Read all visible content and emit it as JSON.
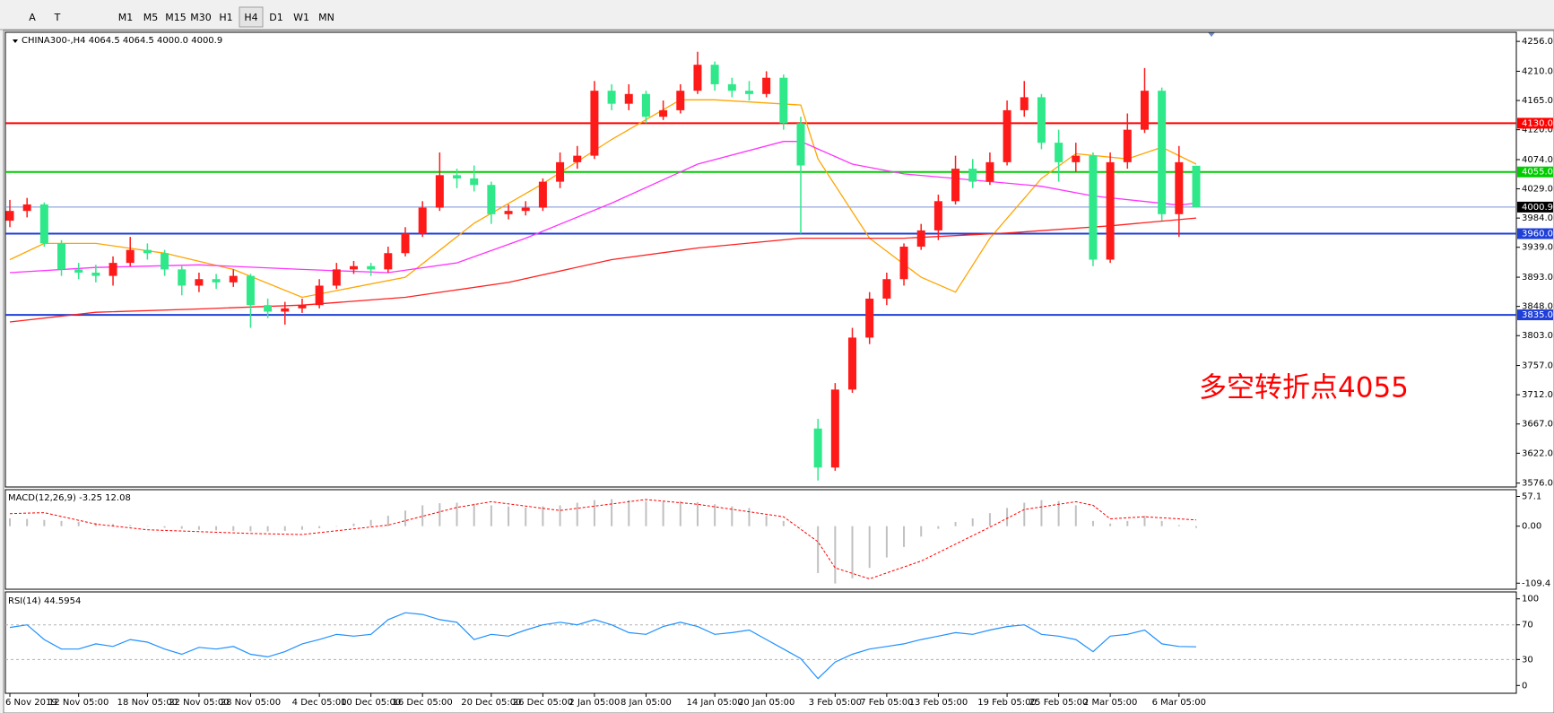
{
  "toolbar": {
    "tools": [
      "A",
      "T"
    ],
    "timeframes": [
      "M1",
      "M5",
      "M15",
      "M30",
      "H1",
      "H4",
      "D1",
      "W1",
      "MN"
    ],
    "active": "H4"
  },
  "chart_data": {
    "type": "candlestick",
    "title": "CHINA300-,H4  4064.5 4064.5 4000.0 4000.9",
    "up_color": "#ff1a1a",
    "down_color": "#2ee88a",
    "categories": [
      "6 Nov 2019",
      null,
      null,
      null,
      "12 Nov 05:00",
      null,
      null,
      null,
      "18 Nov 05:00",
      null,
      null,
      "22 Nov 05:00",
      null,
      null,
      "28 Nov 05:00",
      null,
      null,
      null,
      "4 Dec 05:00",
      null,
      null,
      "10 Dec 05:00",
      null,
      null,
      "16 Dec 05:00",
      null,
      null,
      null,
      "20 Dec 05:00",
      null,
      null,
      "26 Dec 05:00",
      null,
      null,
      "2 Jan 05:00",
      null,
      null,
      "8 Jan 05:00",
      null,
      null,
      null,
      "14 Jan 05:00",
      null,
      null,
      "20 Jan 05:00",
      null,
      null,
      null,
      "3 Feb 05:00",
      null,
      null,
      "7 Feb 05:00",
      null,
      null,
      "13 Feb 05:00",
      null,
      null,
      null,
      "19 Feb 05:00",
      null,
      null,
      "25 Feb 05:00",
      null,
      null,
      "2 Mar 05:00",
      null,
      null,
      null,
      "6 Mar 05:00",
      null
    ],
    "ohlc": [
      [
        3980,
        4012,
        3970,
        3995
      ],
      [
        3995,
        4015,
        3985,
        4005
      ],
      [
        4005,
        4008,
        3940,
        3945
      ],
      [
        3945,
        3950,
        3895,
        3905
      ],
      [
        3905,
        3915,
        3890,
        3900
      ],
      [
        3900,
        3912,
        3885,
        3895
      ],
      [
        3895,
        3925,
        3880,
        3915
      ],
      [
        3915,
        3955,
        3910,
        3935
      ],
      [
        3935,
        3945,
        3920,
        3930
      ],
      [
        3930,
        3935,
        3895,
        3905
      ],
      [
        3905,
        3910,
        3865,
        3880
      ],
      [
        3880,
        3900,
        3870,
        3890
      ],
      [
        3890,
        3898,
        3875,
        3885
      ],
      [
        3885,
        3905,
        3878,
        3895
      ],
      [
        3895,
        3898,
        3815,
        3850
      ],
      [
        3850,
        3860,
        3830,
        3840
      ],
      [
        3840,
        3855,
        3820,
        3845
      ],
      [
        3845,
        3860,
        3838,
        3850
      ],
      [
        3850,
        3890,
        3845,
        3880
      ],
      [
        3880,
        3915,
        3875,
        3905
      ],
      [
        3905,
        3918,
        3898,
        3910
      ],
      [
        3910,
        3915,
        3895,
        3905
      ],
      [
        3905,
        3940,
        3900,
        3930
      ],
      [
        3930,
        3970,
        3925,
        3960
      ],
      [
        3960,
        4010,
        3955,
        4000
      ],
      [
        4000,
        4085,
        3995,
        4050
      ],
      [
        4050,
        4060,
        4030,
        4045
      ],
      [
        4045,
        4065,
        4025,
        4035
      ],
      [
        4035,
        4040,
        3975,
        3990
      ],
      [
        3990,
        4005,
        3982,
        3995
      ],
      [
        3995,
        4010,
        3988,
        4000
      ],
      [
        4000,
        4045,
        3995,
        4040
      ],
      [
        4040,
        4085,
        4030,
        4070
      ],
      [
        4070,
        4095,
        4060,
        4080
      ],
      [
        4080,
        4195,
        4075,
        4180
      ],
      [
        4180,
        4190,
        4150,
        4160
      ],
      [
        4160,
        4190,
        4150,
        4175
      ],
      [
        4175,
        4180,
        4130,
        4140
      ],
      [
        4140,
        4165,
        4135,
        4150
      ],
      [
        4150,
        4190,
        4145,
        4180
      ],
      [
        4180,
        4240,
        4175,
        4220
      ],
      [
        4220,
        4225,
        4180,
        4190
      ],
      [
        4190,
        4200,
        4170,
        4180
      ],
      [
        4180,
        4195,
        4165,
        4175
      ],
      [
        4175,
        4210,
        4170,
        4200
      ],
      [
        4200,
        4205,
        4120,
        4130
      ],
      [
        4130,
        4140,
        3960,
        4065
      ],
      [
        3660,
        3675,
        3580,
        3600
      ],
      [
        3600,
        3730,
        3595,
        3720
      ],
      [
        3720,
        3815,
        3715,
        3800
      ],
      [
        3800,
        3870,
        3790,
        3860
      ],
      [
        3860,
        3900,
        3850,
        3890
      ],
      [
        3890,
        3945,
        3880,
        3940
      ],
      [
        3940,
        3975,
        3935,
        3965
      ],
      [
        3965,
        4020,
        3950,
        4010
      ],
      [
        4010,
        4080,
        4005,
        4060
      ],
      [
        4060,
        4075,
        4030,
        4040
      ],
      [
        4040,
        4085,
        4035,
        4070
      ],
      [
        4070,
        4165,
        4065,
        4150
      ],
      [
        4150,
        4195,
        4140,
        4170
      ],
      [
        4170,
        4175,
        4090,
        4100
      ],
      [
        4100,
        4120,
        4040,
        4070
      ],
      [
        4070,
        4100,
        4055,
        4080
      ],
      [
        4080,
        4085,
        3910,
        3920
      ],
      [
        3920,
        4085,
        3915,
        4070
      ],
      [
        4070,
        4145,
        4060,
        4120
      ],
      [
        4120,
        4215,
        4115,
        4180
      ],
      [
        4180,
        4185,
        3980,
        3990
      ],
      [
        3990,
        4095,
        3955,
        4070
      ],
      [
        4064.5,
        4064.5,
        4000.0,
        4000.9
      ]
    ],
    "ylim": [
      3570,
      4270
    ],
    "yticks": [
      {
        "value": 4256,
        "label": "4256.0"
      },
      {
        "value": 4210,
        "label": "4210.0"
      },
      {
        "value": 4165,
        "label": "4165.0"
      },
      {
        "value": 4120,
        "label": "4120.0"
      },
      {
        "value": 4074,
        "label": "4074.0"
      },
      {
        "value": 4029,
        "label": "4029.0"
      },
      {
        "value": 3984,
        "label": "3984.0"
      },
      {
        "value": 3939,
        "label": "3939.0"
      },
      {
        "value": 3893,
        "label": "3893.0"
      },
      {
        "value": 3848,
        "label": "3848.0"
      },
      {
        "value": 3803,
        "label": "3803.0"
      },
      {
        "value": 3757,
        "label": "3757.0"
      },
      {
        "value": 3712,
        "label": "3712.0"
      },
      {
        "value": 3667,
        "label": "3667.0"
      },
      {
        "value": 3622,
        "label": "3622.0"
      },
      {
        "value": 3576,
        "label": "3576.0"
      }
    ],
    "moving_averages": [
      {
        "color": "#ffa500",
        "x": [
          0,
          2,
          5,
          9,
          13,
          17,
          23,
          27,
          31,
          35,
          39,
          41,
          46,
          47,
          50,
          53,
          55,
          57,
          60,
          62,
          65,
          67,
          69
        ],
        "values": [
          3920,
          3945,
          3945,
          3930,
          3905,
          3862,
          3893,
          3976,
          4037,
          4105,
          4166,
          4166,
          4158,
          4075,
          3953,
          3893,
          3870,
          3953,
          4045,
          4083,
          4075,
          4093,
          4067
        ]
      },
      {
        "color": "#ff33ff",
        "x": [
          0,
          5,
          11,
          17,
          22,
          26,
          30,
          35,
          40,
          45,
          46,
          49,
          52,
          55,
          60,
          63,
          68,
          69
        ],
        "values": [
          3900,
          3908,
          3912,
          3905,
          3900,
          3915,
          3953,
          4007,
          4067,
          4102,
          4102,
          4067,
          4052,
          4045,
          4033,
          4018,
          4004,
          4007
        ]
      },
      {
        "color": "#ff2020",
        "x": [
          0,
          5,
          11,
          17,
          23,
          29,
          35,
          40,
          46,
          52,
          58,
          64,
          69
        ],
        "values": [
          3824,
          3839,
          3844,
          3850,
          3862,
          3885,
          3920,
          3938,
          3953,
          3953,
          3961,
          3972,
          3984
        ]
      }
    ],
    "levels": [
      {
        "value": 4130,
        "label": "4130.0",
        "color": "#ff0000",
        "label_color": "#ff0000",
        "width": 2
      },
      {
        "value": 4055,
        "label": "4055.0",
        "color": "#00cc00",
        "label_color": "#00cc00",
        "width": 2
      },
      {
        "value": 4000.9,
        "label": "4000.9",
        "color": "#7b8fd6",
        "label_color": "#000000",
        "width": 1
      },
      {
        "value": 3960,
        "label": "3960.0",
        "color": "#1f3fd8",
        "label_color": "#1f3fd8",
        "width": 2
      },
      {
        "value": 3835,
        "label": "3835.0",
        "color": "#1f3fd8",
        "label_color": "#1f3fd8",
        "width": 2
      }
    ],
    "annotation": {
      "text": "多空转折点4055",
      "color": "#ff0000"
    },
    "macd": {
      "title": "MACD(12,26,9) -3.25 12.08",
      "ylim": [
        -121,
        70
      ],
      "yticks": [
        57.1,
        {
          "value": 0,
          "label": "0.00"
        },
        -109.4
      ],
      "color": "#c0c0c0",
      "histogram": [
        15,
        14,
        12,
        10,
        8,
        6,
        4,
        2,
        0,
        -3,
        -5,
        -7,
        -8,
        -9,
        -10,
        -10,
        -9,
        -7,
        -4,
        0,
        5,
        12,
        20,
        30,
        40,
        44,
        45,
        43,
        40,
        38,
        36,
        38,
        40,
        45,
        50,
        52,
        50,
        48,
        47,
        48,
        46,
        42,
        38,
        35,
        20,
        10,
        0,
        -90,
        -110,
        -100,
        -80,
        -60,
        -40,
        -20,
        -5,
        8,
        15,
        25,
        35,
        45,
        50,
        48,
        40,
        10,
        5,
        10,
        20,
        10,
        2,
        -3.25
      ],
      "signal": {
        "color": "#ff0000",
        "x": [
          0,
          2,
          5,
          8,
          14,
          17,
          22,
          26,
          28,
          32,
          37,
          40,
          45,
          47,
          48,
          50,
          53,
          57,
          59,
          62,
          63,
          64,
          66,
          69
        ],
        "values": [
          24,
          26,
          4,
          -7,
          -14,
          -16,
          2,
          36,
          47,
          30,
          51,
          42,
          18,
          -30,
          -80,
          -101,
          -67,
          -2,
          32,
          47,
          40,
          14,
          18,
          12.08
        ]
      }
    },
    "rsi": {
      "title": "RSI(14) 44.5954",
      "ylim": [
        -9,
        108
      ],
      "yticks": [
        100,
        70,
        30,
        0
      ],
      "levels": [
        70,
        30
      ],
      "color": "#1e90ff",
      "values": [
        67,
        70,
        53,
        42,
        42,
        48,
        45,
        53,
        50,
        42,
        36,
        44,
        42,
        45,
        36,
        33,
        39,
        48,
        53,
        59,
        57,
        59,
        76,
        84,
        82,
        76,
        73,
        53,
        59,
        57,
        64,
        70,
        73,
        70,
        76,
        70,
        61,
        59,
        68,
        73,
        68,
        59,
        61,
        64,
        53,
        42,
        31,
        8,
        27,
        36,
        42,
        45,
        48,
        53,
        57,
        61,
        59,
        64,
        68,
        70,
        59,
        57,
        53,
        39,
        57,
        59,
        64,
        48,
        45,
        44.5954
      ]
    }
  }
}
